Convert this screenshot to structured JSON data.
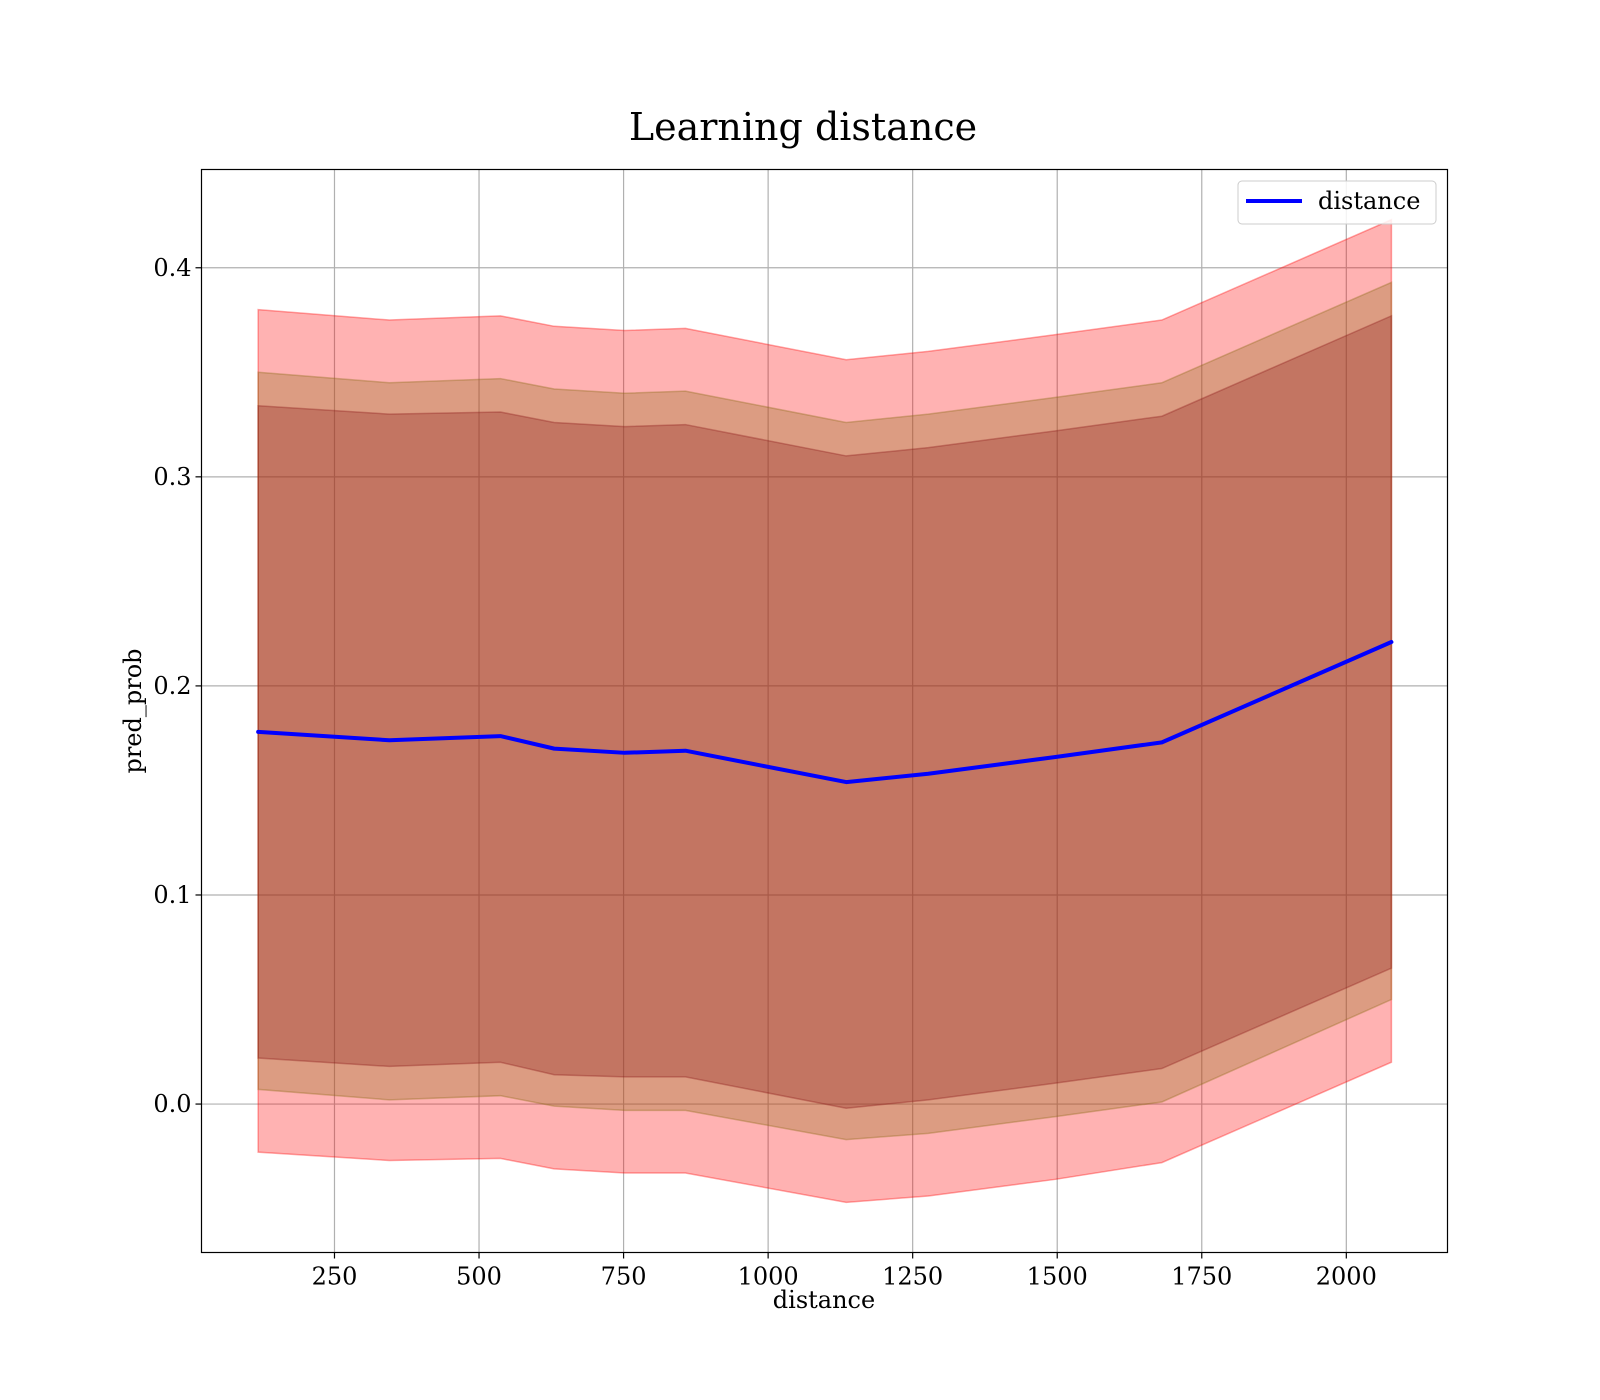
{
  "chart_data": {
    "type": "line",
    "title": "Learning distance",
    "xlabel": "distance",
    "ylabel": "pred_prob",
    "xlim": [
      20,
      2175
    ],
    "ylim": [
      -0.071,
      0.447
    ],
    "xticks": [
      250,
      500,
      750,
      1000,
      1250,
      1500,
      1750,
      2000
    ],
    "yticks": [
      0.0,
      0.1,
      0.2,
      0.3,
      0.4
    ],
    "xtick_labels": [
      "250",
      "500",
      "750",
      "1000",
      "1250",
      "1500",
      "1750",
      "2000"
    ],
    "ytick_labels": [
      "0.0",
      "0.1",
      "0.2",
      "0.3",
      "0.4"
    ],
    "grid": true,
    "legend": {
      "position": "top-right",
      "entries": [
        "distance"
      ]
    },
    "colors": {
      "line": "#0000ff",
      "band": "#ff0000",
      "band_inner": "#8b1a1a",
      "grid": "#b0b0b0"
    },
    "x": [
      118,
      345,
      537,
      630,
      752,
      857,
      1135,
      1277,
      1497,
      1681,
      2078
    ],
    "series": [
      {
        "name": "distance",
        "values": [
          0.178,
          0.174,
          0.176,
          0.17,
          0.168,
          0.169,
          0.154,
          0.158,
          0.166,
          0.173,
          0.221
        ]
      }
    ],
    "bands": [
      {
        "lower": [
          -0.023,
          -0.027,
          -0.026,
          -0.031,
          -0.033,
          -0.033,
          -0.047,
          -0.044,
          -0.036,
          -0.028,
          0.02
        ],
        "upper": [
          0.38,
          0.375,
          0.377,
          0.372,
          0.37,
          0.371,
          0.356,
          0.36,
          0.368,
          0.375,
          0.423
        ],
        "opacity": 0.3
      },
      {
        "lower": [
          0.007,
          0.002,
          0.004,
          -0.001,
          -0.003,
          -0.003,
          -0.017,
          -0.014,
          -0.006,
          0.001,
          0.05
        ],
        "upper": [
          0.35,
          0.345,
          0.347,
          0.342,
          0.34,
          0.341,
          0.326,
          0.33,
          0.338,
          0.345,
          0.393
        ],
        "opacity": 0.3
      },
      {
        "lower": [
          0.022,
          0.018,
          0.02,
          0.014,
          0.013,
          0.013,
          -0.002,
          0.002,
          0.01,
          0.017,
          0.065
        ],
        "upper": [
          0.334,
          0.33,
          0.331,
          0.326,
          0.324,
          0.325,
          0.31,
          0.314,
          0.322,
          0.329,
          0.377
        ],
        "opacity": 0.3
      }
    ]
  }
}
